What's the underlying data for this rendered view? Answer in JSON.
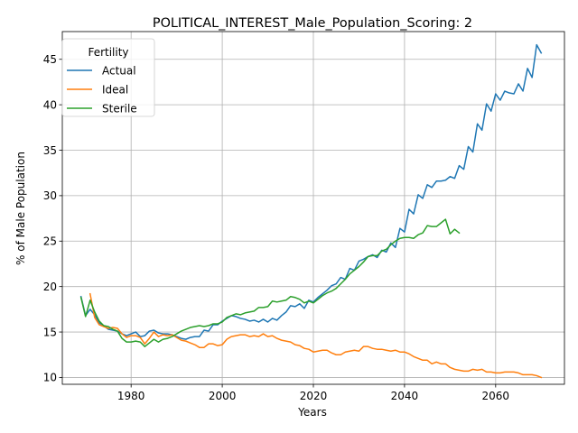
{
  "chart_data": {
    "type": "line",
    "title": "POLITICAL_INTEREST_Male_Population_Scoring: 2",
    "xlabel": "Years",
    "ylabel": "% of Male Population",
    "xlim": [
      1964.9,
      2075.1
    ],
    "ylim": [
      9.25,
      48.05
    ],
    "xticks": [
      1980,
      2000,
      2020,
      2040,
      2060
    ],
    "yticks": [
      10,
      15,
      20,
      25,
      30,
      35,
      40,
      45
    ],
    "grid": true,
    "legend": {
      "title": "Fertility",
      "placement": "top-left"
    },
    "colors": {
      "Actual": "#1f77b4",
      "Ideal": "#ff7f0e",
      "Sterile": "#2ca02c"
    },
    "series": [
      {
        "name": "Actual",
        "x": [
          1969,
          1970,
          1971,
          1972,
          1973,
          1974,
          1975,
          1976,
          1977,
          1978,
          1979,
          1980,
          1981,
          1982,
          1983,
          1984,
          1985,
          1986,
          1987,
          1988,
          1989,
          1990,
          1991,
          1992,
          1993,
          1994,
          1995,
          1996,
          1997,
          1998,
          1999,
          2000,
          2001,
          2002,
          2003,
          2004,
          2005,
          2006,
          2007,
          2008,
          2009,
          2010,
          2011,
          2012,
          2013,
          2014,
          2015,
          2016,
          2017,
          2018,
          2019,
          2020,
          2021,
          2022,
          2023,
          2024,
          2025,
          2026,
          2027,
          2028,
          2029,
          2030,
          2031,
          2032,
          2033,
          2034,
          2035,
          2036,
          2037,
          2038,
          2039,
          2040,
          2041,
          2042,
          2043,
          2044,
          2045,
          2046,
          2047,
          2048,
          2049,
          2050,
          2051,
          2052,
          2053,
          2054,
          2055,
          2056,
          2057,
          2058,
          2059,
          2060,
          2061,
          2062,
          2063,
          2064,
          2065,
          2066,
          2067,
          2068,
          2069,
          2070
        ],
        "y": [
          18.9,
          16.8,
          17.5,
          16.9,
          16.0,
          15.7,
          15.3,
          15.2,
          15.1,
          14.8,
          14.6,
          14.8,
          15.0,
          14.5,
          14.6,
          15.1,
          15.2,
          14.9,
          14.8,
          14.8,
          14.7,
          14.5,
          14.3,
          14.2,
          14.4,
          14.5,
          14.5,
          15.2,
          15.1,
          15.8,
          15.8,
          16.2,
          16.5,
          16.8,
          16.7,
          16.5,
          16.4,
          16.2,
          16.3,
          16.1,
          16.4,
          16.1,
          16.5,
          16.3,
          16.8,
          17.2,
          17.9,
          17.8,
          18.1,
          17.6,
          18.5,
          18.3,
          18.8,
          19.2,
          19.6,
          20.1,
          20.3,
          21.0,
          20.8,
          22.0,
          21.8,
          22.8,
          23.0,
          23.3,
          23.5,
          23.2,
          24.0,
          23.8,
          24.8,
          24.3,
          26.4,
          26.0,
          28.5,
          28.0,
          30.1,
          29.7,
          31.2,
          30.9,
          31.6,
          31.6,
          31.7,
          32.1,
          31.9,
          33.3,
          32.9,
          35.4,
          34.8,
          37.9,
          37.2,
          40.1,
          39.3,
          41.2,
          40.5,
          41.5,
          41.3,
          41.2,
          42.3,
          41.5,
          44.0,
          43.0,
          46.6,
          45.7
        ]
      },
      {
        "name": "Ideal",
        "x": [
          1971,
          1972,
          1973,
          1974,
          1975,
          1976,
          1977,
          1978,
          1979,
          1980,
          1981,
          1982,
          1983,
          1984,
          1985,
          1986,
          1987,
          1988,
          1989,
          1990,
          1991,
          1992,
          1993,
          1994,
          1995,
          1996,
          1997,
          1998,
          1999,
          2000,
          2001,
          2002,
          2003,
          2004,
          2005,
          2006,
          2007,
          2008,
          2009,
          2010,
          2011,
          2012,
          2013,
          2014,
          2015,
          2016,
          2017,
          2018,
          2019,
          2020,
          2021,
          2022,
          2023,
          2024,
          2025,
          2026,
          2027,
          2028,
          2029,
          2030,
          2031,
          2032,
          2033,
          2034,
          2035,
          2036,
          2037,
          2038,
          2039,
          2040,
          2041,
          2042,
          2043,
          2044,
          2045,
          2046,
          2047,
          2048,
          2049,
          2050,
          2051,
          2052,
          2053,
          2054,
          2055,
          2056,
          2057,
          2058,
          2059,
          2060,
          2061,
          2062,
          2063,
          2064,
          2065,
          2066,
          2067,
          2068,
          2069,
          2070
        ],
        "y": [
          19.2,
          16.6,
          15.8,
          15.6,
          15.4,
          15.5,
          15.4,
          14.8,
          14.4,
          14.6,
          14.6,
          14.4,
          13.7,
          14.3,
          15.0,
          14.5,
          14.7,
          14.6,
          14.7,
          14.4,
          14.1,
          14.0,
          13.8,
          13.6,
          13.3,
          13.3,
          13.7,
          13.7,
          13.5,
          13.6,
          14.2,
          14.5,
          14.6,
          14.7,
          14.7,
          14.5,
          14.6,
          14.5,
          14.8,
          14.5,
          14.6,
          14.3,
          14.1,
          14.0,
          13.9,
          13.6,
          13.5,
          13.2,
          13.1,
          12.8,
          12.9,
          13.0,
          13.0,
          12.7,
          12.5,
          12.5,
          12.8,
          12.9,
          13.0,
          12.9,
          13.4,
          13.4,
          13.2,
          13.1,
          13.1,
          13.0,
          12.9,
          13.0,
          12.8,
          12.8,
          12.6,
          12.3,
          12.1,
          11.9,
          11.9,
          11.5,
          11.7,
          11.5,
          11.5,
          11.1,
          10.9,
          10.8,
          10.7,
          10.7,
          10.9,
          10.8,
          10.9,
          10.6,
          10.6,
          10.5,
          10.5,
          10.6,
          10.6,
          10.6,
          10.5,
          10.3,
          10.3,
          10.3,
          10.2,
          10.0
        ]
      },
      {
        "name": "Sterile",
        "x": [
          1969,
          1970,
          1971,
          1972,
          1973,
          1974,
          1975,
          1976,
          1977,
          1978,
          1979,
          1980,
          1981,
          1982,
          1983,
          1984,
          1985,
          1986,
          1987,
          1988,
          1989,
          1990,
          1991,
          1992,
          1993,
          1994,
          1995,
          1996,
          1997,
          1998,
          1999,
          2000,
          2001,
          2002,
          2003,
          2004,
          2005,
          2006,
          2007,
          2008,
          2009,
          2010,
          2011,
          2012,
          2013,
          2014,
          2015,
          2016,
          2017,
          2018,
          2019,
          2020,
          2021,
          2022,
          2023,
          2024,
          2025,
          2026,
          2027,
          2028,
          2029,
          2030,
          2031,
          2032,
          2033,
          2034,
          2035,
          2036,
          2037,
          2038,
          2039,
          2040,
          2041,
          2042,
          2043,
          2044,
          2045,
          2046,
          2047,
          2048,
          2049,
          2050,
          2051,
          2052
        ],
        "y": [
          18.8,
          16.7,
          18.5,
          17.2,
          16.2,
          15.7,
          15.6,
          15.3,
          15.1,
          14.3,
          13.9,
          13.9,
          14.0,
          13.9,
          13.4,
          13.8,
          14.2,
          13.9,
          14.2,
          14.3,
          14.5,
          14.8,
          15.1,
          15.3,
          15.5,
          15.6,
          15.7,
          15.6,
          15.7,
          15.9,
          15.9,
          16.1,
          16.6,
          16.8,
          17.0,
          16.9,
          17.1,
          17.2,
          17.3,
          17.7,
          17.7,
          17.8,
          18.4,
          18.3,
          18.4,
          18.5,
          18.9,
          18.8,
          18.6,
          18.2,
          18.4,
          18.2,
          18.6,
          19.0,
          19.3,
          19.5,
          19.8,
          20.3,
          20.8,
          21.4,
          21.8,
          22.2,
          22.7,
          23.3,
          23.4,
          23.4,
          23.9,
          24.1,
          24.6,
          25.0,
          25.3,
          25.4,
          25.4,
          25.3,
          25.7,
          25.9,
          26.7,
          26.6,
          26.6,
          27.0,
          27.4,
          25.8,
          26.3,
          25.9
        ]
      }
    ]
  }
}
